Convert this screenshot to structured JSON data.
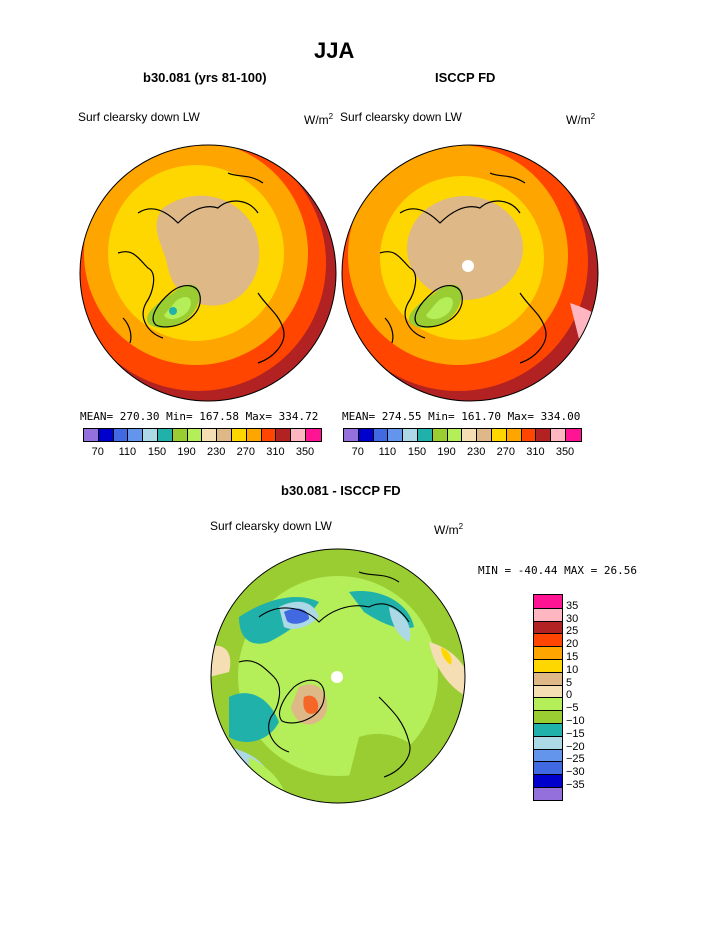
{
  "title": "JJA",
  "panels": [
    {
      "title": "b30.081 (yrs 81-100)",
      "left_label": "Surf clearsky down LW",
      "units": "W/m",
      "units_sup": "2",
      "stats": "MEAN= 270.30   Min= 167.58   Max= 334.72"
    },
    {
      "title": "ISCCP FD",
      "left_label": "Surf clearsky down LW",
      "units": "W/m",
      "units_sup": "2",
      "stats": "MEAN= 274.55   Min= 161.70   Max= 334.00"
    }
  ],
  "colorbar_top": {
    "colors": [
      "#9370db",
      "#0000cd",
      "#4169e1",
      "#6495ed",
      "#add8e6",
      "#20b2aa",
      "#9acd32",
      "#b4ee59",
      "#f5deb3",
      "#deb887",
      "#ffd700",
      "#ffa500",
      "#ff4500",
      "#b22222",
      "#ffb6c1",
      "#ff1493"
    ],
    "labels": [
      "70",
      "110",
      "150",
      "190",
      "230",
      "270",
      "310",
      "350"
    ]
  },
  "diff_panel": {
    "title": "b30.081 - ISCCP FD",
    "left_label": "Surf clearsky down LW",
    "units": "W/m",
    "units_sup": "2",
    "minmax": "MIN = -40.44  MAX =   26.56"
  },
  "colorbar_diff": {
    "colors": [
      "#9370db",
      "#0000cd",
      "#4169e1",
      "#6495ed",
      "#add8e6",
      "#20b2aa",
      "#9acd32",
      "#b4ee59",
      "#f5deb3",
      "#deb887",
      "#ffd700",
      "#ffa500",
      "#ff4500",
      "#b22222",
      "#ffb6c1",
      "#ff1493"
    ],
    "labels": [
      "−35",
      "−30",
      "−25",
      "−20",
      "−15",
      "−10",
      "−5",
      "0",
      "5",
      "10",
      "15",
      "20",
      "25",
      "30",
      "35"
    ]
  }
}
